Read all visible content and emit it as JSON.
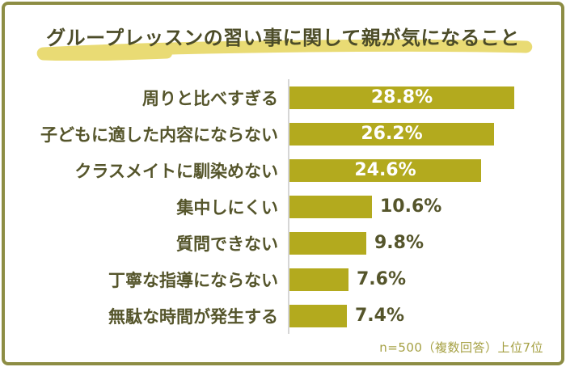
{
  "page": {
    "title": "グループレッスンの習い事に関して親が気になること",
    "footer_note": "n=500（複数回答）上位7位"
  },
  "colors": {
    "bar": "#b3aa1e",
    "title_text": "#4c4c28",
    "label_text": "#55552b",
    "pct_inside_text": "#ffffff",
    "marker_highlight": "#e9db74",
    "border": "#8d8d44",
    "footer_text": "#a5a043",
    "axis_line": "#d6d6d6"
  },
  "chart_data": {
    "type": "bar",
    "orientation": "horizontal",
    "title": "グループレッスンの習い事に関して親が気になること",
    "categories": [
      "周りと比べすぎる",
      "子どもに適した内容にならない",
      "クラスメイトに馴染めない",
      "集中しにくい",
      "質問できない",
      "丁寧な指導にならない",
      "無駄な時間が発生する"
    ],
    "values": [
      28.8,
      26.2,
      24.6,
      10.6,
      9.8,
      7.6,
      7.4
    ],
    "value_labels": [
      "28.8%",
      "26.2%",
      "24.6%",
      "10.6%",
      "9.8%",
      "7.6%",
      "7.4%"
    ],
    "unit": "%",
    "xlim": [
      0,
      30
    ],
    "grid": false,
    "legend": "none",
    "value_label_placement_rule": "inside bar when value > 20, otherwise right of bar",
    "note": "n=500（複数回答）上位7位"
  }
}
